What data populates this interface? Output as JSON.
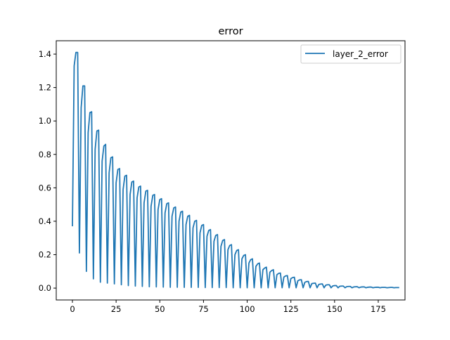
{
  "chart_data": {
    "type": "line",
    "title": "error",
    "xlabel": "",
    "ylabel": "",
    "xlim": [
      -9.25,
      190.3
    ],
    "ylim": [
      -0.071,
      1.48
    ],
    "xticks": [
      0,
      25,
      50,
      75,
      100,
      125,
      150,
      175
    ],
    "xtick_labels": [
      "0",
      "25",
      "50",
      "75",
      "100",
      "125",
      "150",
      "175"
    ],
    "yticks": [
      0.0,
      0.2,
      0.4,
      0.6,
      0.8,
      1.0,
      1.2,
      1.4
    ],
    "ytick_labels": [
      "0.0",
      "0.2",
      "0.4",
      "0.6",
      "0.8",
      "1.0",
      "1.2",
      "1.4"
    ],
    "grid": false,
    "legend": {
      "placement": "top-right"
    },
    "series": [
      {
        "name": "layer_2_error",
        "color": "#1f77b4",
        "x_start": 0,
        "x_step": 1,
        "values": [
          0.37,
          1.33,
          1.41,
          1.41,
          0.21,
          1.08,
          1.21,
          1.21,
          0.1,
          0.93,
          1.05,
          1.055,
          0.055,
          0.83,
          0.94,
          0.945,
          0.035,
          0.76,
          0.85,
          0.86,
          0.03,
          0.69,
          0.78,
          0.785,
          0.025,
          0.63,
          0.71,
          0.715,
          0.02,
          0.59,
          0.67,
          0.675,
          0.015,
          0.56,
          0.635,
          0.64,
          0.012,
          0.54,
          0.605,
          0.61,
          0.01,
          0.51,
          0.58,
          0.585,
          0.008,
          0.49,
          0.555,
          0.56,
          0.007,
          0.47,
          0.53,
          0.535,
          0.006,
          0.45,
          0.505,
          0.51,
          0.005,
          0.43,
          0.48,
          0.485,
          0.005,
          0.4,
          0.455,
          0.46,
          0.004,
          0.38,
          0.43,
          0.435,
          0.004,
          0.36,
          0.4,
          0.405,
          0.004,
          0.33,
          0.375,
          0.38,
          0.003,
          0.31,
          0.345,
          0.35,
          0.003,
          0.28,
          0.315,
          0.32,
          0.003,
          0.25,
          0.285,
          0.29,
          0.003,
          0.23,
          0.255,
          0.26,
          0.002,
          0.2,
          0.225,
          0.23,
          0.002,
          0.175,
          0.195,
          0.2,
          0.002,
          0.15,
          0.17,
          0.175,
          0.002,
          0.13,
          0.145,
          0.15,
          0.002,
          0.11,
          0.12,
          0.125,
          0.002,
          0.095,
          0.105,
          0.11,
          0.002,
          0.08,
          0.088,
          0.09,
          0.002,
          0.066,
          0.073,
          0.075,
          0.002,
          0.057,
          0.063,
          0.065,
          0.002,
          0.044,
          0.049,
          0.05,
          0.002,
          0.035,
          0.039,
          0.04,
          0.002,
          0.027,
          0.029,
          0.03,
          0.002,
          0.022,
          0.024,
          0.025,
          0.002,
          0.018,
          0.02,
          0.02,
          0.002,
          0.013,
          0.015,
          0.015,
          0.002,
          0.011,
          0.012,
          0.012,
          0.002,
          0.009,
          0.01,
          0.01,
          0.002,
          0.007,
          0.008,
          0.008,
          0.002,
          0.006,
          0.007,
          0.007,
          0.002,
          0.005,
          0.006,
          0.006,
          0.002,
          0.004,
          0.005,
          0.005,
          0.002,
          0.004,
          0.004,
          0.004,
          0.002,
          0.003,
          0.004,
          0.004,
          0.002,
          0.003,
          0.003,
          0.003
        ]
      }
    ]
  }
}
